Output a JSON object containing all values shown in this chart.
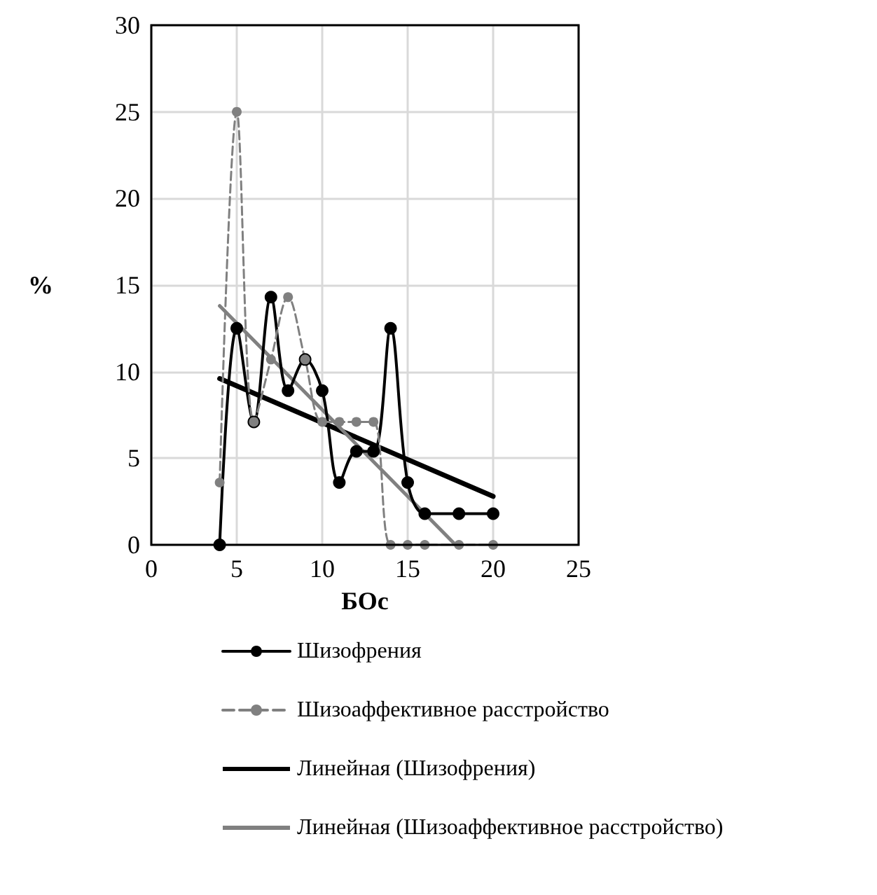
{
  "chart_data": {
    "type": "line",
    "xlabel": "БОс",
    "ylabel": "%",
    "xlim": [
      0,
      25
    ],
    "xticks": [
      0,
      5,
      10,
      15,
      20,
      25
    ],
    "ylim": [
      0,
      30
    ],
    "yticks": [
      0,
      5,
      10,
      15,
      20,
      25,
      30
    ],
    "grid": true,
    "legend": "bottom",
    "series": [
      {
        "name": "Шизофрения",
        "color": "#000000",
        "marker": "circle",
        "line_style": "solid",
        "x": [
          4,
          5,
          6,
          7,
          8,
          9,
          10,
          11,
          12,
          13,
          14,
          15,
          16,
          18,
          20
        ],
        "values": [
          0,
          12.5,
          7.1,
          14.3,
          8.9,
          10.7,
          8.9,
          3.6,
          5.4,
          5.4,
          12.5,
          3.6,
          1.8,
          1.8,
          1.8
        ]
      },
      {
        "name": "Шизоаффективное расстройство",
        "color": "#808080",
        "marker": "circle",
        "line_style": "dashed",
        "x": [
          4,
          5,
          6,
          7,
          8,
          9,
          10,
          11,
          12,
          13,
          14,
          15,
          16,
          18,
          20
        ],
        "values": [
          3.6,
          25,
          7.1,
          10.7,
          14.3,
          10.7,
          7.1,
          7.1,
          7.1,
          7.1,
          0,
          0,
          0,
          0,
          0
        ]
      },
      {
        "name": "Линейная (Шизофрения)",
        "color": "#000000",
        "marker": "none",
        "line_style": "solid",
        "x": [
          4,
          20
        ],
        "values": [
          9.6,
          2.8
        ]
      },
      {
        "name": "Линейная (Шизоаффективное расстройство)",
        "color": "#808080",
        "marker": "none",
        "line_style": "solid",
        "x": [
          4,
          17.8
        ],
        "values": [
          13.8,
          0
        ]
      }
    ]
  }
}
